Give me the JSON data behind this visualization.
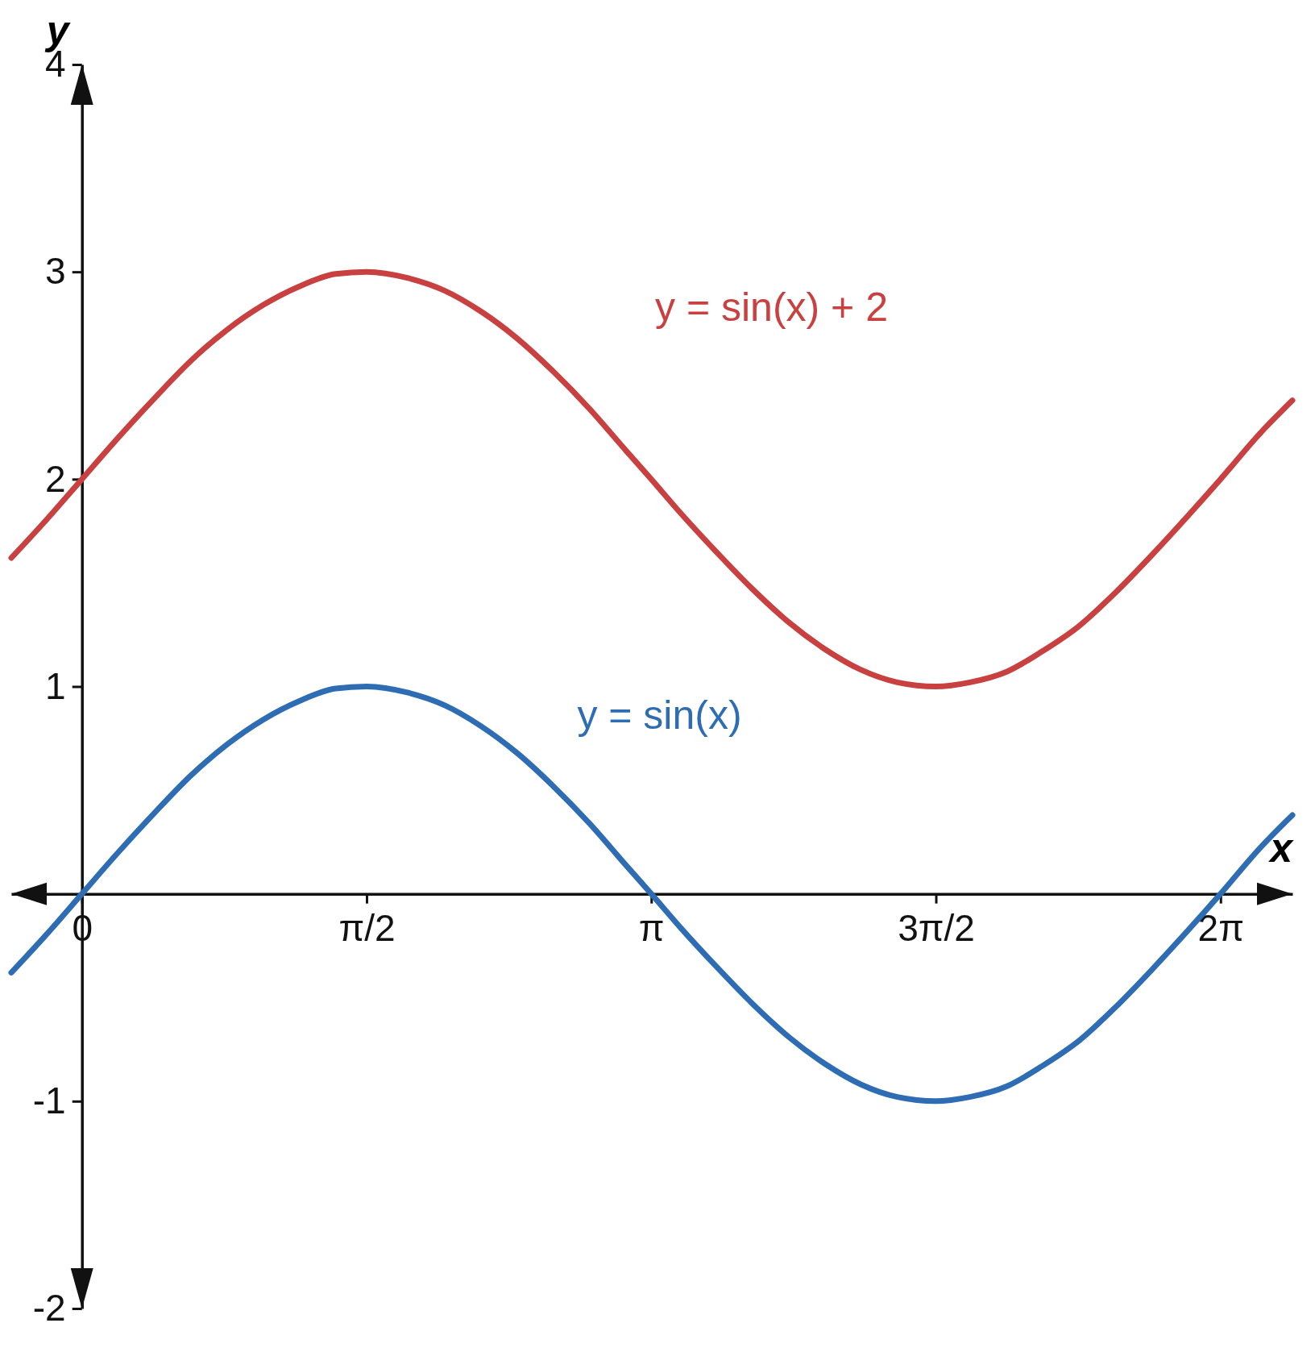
{
  "chart_data": {
    "type": "line",
    "xlabel": "x",
    "ylabel": "y",
    "xlim": [
      -0.39,
      6.68
    ],
    "ylim": [
      -2,
      4
    ],
    "xticks": [
      {
        "value": 0,
        "label": "0"
      },
      {
        "value": 1.5708,
        "label": "π/2"
      },
      {
        "value": 3.1416,
        "label": "π"
      },
      {
        "value": 4.7124,
        "label": "3π/2"
      },
      {
        "value": 6.2832,
        "label": "2π"
      }
    ],
    "yticks": [
      -2,
      -1,
      1,
      2,
      3,
      4
    ],
    "x": [
      -0.39,
      -0.2,
      0,
      0.2,
      0.4,
      0.6,
      0.8,
      1.0,
      1.2,
      1.4,
      1.5708,
      1.8,
      2.0,
      2.2,
      2.4,
      2.6,
      2.8,
      3.0,
      3.1416,
      3.3,
      3.5,
      3.7,
      3.9,
      4.1,
      4.3,
      4.5,
      4.7124,
      4.9,
      5.1,
      5.3,
      5.5,
      5.7,
      5.9,
      6.1,
      6.2832,
      6.5,
      6.68
    ],
    "series": [
      {
        "name": "y = sin(x) + 2",
        "color": "#c8403f",
        "values": [
          1.62,
          1.8,
          2,
          2.2,
          2.39,
          2.57,
          2.72,
          2.84,
          2.93,
          2.99,
          3,
          2.97,
          2.91,
          2.81,
          2.68,
          2.52,
          2.34,
          2.14,
          2,
          1.84,
          1.65,
          1.47,
          1.31,
          1.18,
          1.08,
          1.02,
          1,
          1.02,
          1.07,
          1.17,
          1.29,
          1.45,
          1.63,
          1.82,
          2,
          2.22,
          2.38
        ]
      },
      {
        "name": "y = sin(x)",
        "color": "#2e6db4",
        "values": [
          -0.38,
          -0.2,
          0,
          0.2,
          0.39,
          0.57,
          0.72,
          0.84,
          0.93,
          0.99,
          1,
          0.97,
          0.91,
          0.81,
          0.68,
          0.52,
          0.34,
          0.14,
          0,
          -0.16,
          -0.35,
          -0.53,
          -0.69,
          -0.82,
          -0.92,
          -0.98,
          -1,
          -0.98,
          -0.93,
          -0.83,
          -0.71,
          -0.55,
          -0.37,
          -0.18,
          0,
          0.22,
          0.38
        ]
      }
    ],
    "grid": false,
    "marker": "none",
    "line_style": "solid"
  }
}
